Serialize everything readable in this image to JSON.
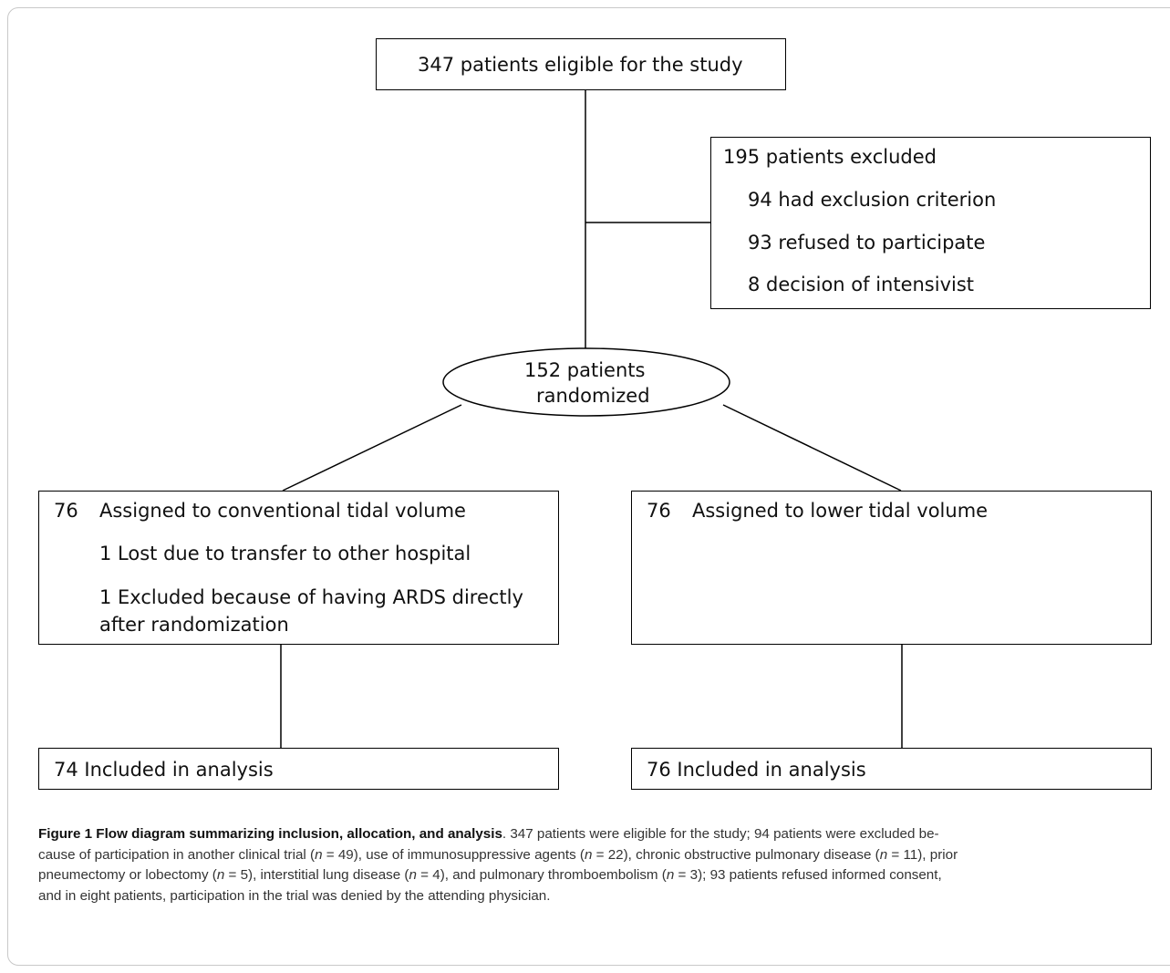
{
  "diagram": {
    "top_box": "347 patients eligible for the study",
    "excluded": {
      "title": "195 patients excluded",
      "items": [
        "94 had exclusion criterion",
        "93 refused to participate",
        "8 decision of intensivist"
      ]
    },
    "randomized": {
      "line1": "152 patients",
      "line2": "randomized"
    },
    "left_arm": {
      "count": "76",
      "title": "Assigned to conventional tidal volume",
      "item1": "1 Lost due to transfer to other hospital",
      "item2_line1": "1 Excluded because of having ARDS directly",
      "item2_line2": "after randomization"
    },
    "right_arm": {
      "count": "76",
      "title": "Assigned to lower tidal volume"
    },
    "left_analysis": "74 Included in analysis",
    "right_analysis": "76 Included in analysis"
  },
  "caption": {
    "label": "Figure 1 Flow diagram summarizing inclusion, allocation, and analysis",
    "p1": ". 347 patients were eligible for the study; 94 patients were excluded be-",
    "p2": "cause of participation in another clinical trial (",
    "n": "n",
    "p3": " = 49), use of immunosuppressive agents (",
    "p4": " = 22), chronic obstructive pulmonary disease (",
    "p5": " = 11), prior",
    "p6": "pneumectomy or lobectomy (",
    "p7": " = 5), interstitial lung disease (",
    "p8": " = 4), and pulmonary thromboembolism (",
    "p9": " = 3); 93 patients refused informed consent,",
    "p10": "and in eight patients, participation in the trial was denied by the attending physician."
  }
}
